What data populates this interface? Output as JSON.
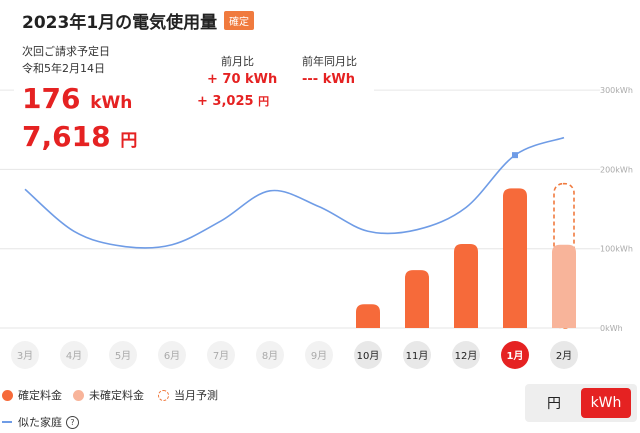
{
  "header": {
    "title": "2023年1月の電気使用量",
    "badge": "確定"
  },
  "summary": {
    "billing_label": "次回ご請求予定日",
    "billing_date": "令和5年2月14日",
    "usage_value": "176",
    "usage_unit": "kWh",
    "cost_value": "7,618",
    "cost_unit": "円",
    "mom_label": "前月比",
    "mom_kwh": "+ 70 kWh",
    "mom_yen_value": "+ 3,025",
    "mom_yen_unit": "円",
    "yoy_label": "前年同月比",
    "yoy_kwh": "--- kWh"
  },
  "chart_data": {
    "type": "bar",
    "categories": [
      "3月",
      "4月",
      "5月",
      "6月",
      "7月",
      "8月",
      "9月",
      "10月",
      "11月",
      "12月",
      "1月",
      "2月"
    ],
    "ylim": [
      0,
      300
    ],
    "y_ticks": [
      "300kWh",
      "200kWh",
      "100kWh",
      "0kWh"
    ],
    "series": [
      {
        "name": "確定料金",
        "values": [
          null,
          null,
          null,
          null,
          null,
          null,
          null,
          30,
          73,
          106,
          176,
          null
        ]
      },
      {
        "name": "未確定料金",
        "values": [
          null,
          null,
          null,
          null,
          null,
          null,
          null,
          null,
          null,
          null,
          null,
          105
        ]
      },
      {
        "name": "当月予測",
        "values": [
          null,
          null,
          null,
          null,
          null,
          null,
          null,
          null,
          null,
          null,
          null,
          182
        ]
      },
      {
        "name": "似た家庭",
        "values": [
          175,
          122,
          103,
          105,
          135,
          173,
          153,
          122,
          124,
          152,
          218,
          240
        ]
      }
    ],
    "active_month": "1月",
    "colors": {
      "confirmed": "#f66a3a",
      "unconfirmed": "#f8b49a",
      "forecast": "#f07a3e",
      "similar": "#6f9ce6",
      "active": "#e52222"
    }
  },
  "legend": {
    "confirmed": "確定料金",
    "unconfirmed": "未確定料金",
    "forecast": "当月予測",
    "similar": "似た家庭"
  },
  "toggle": {
    "yen": "円",
    "kwh": "kWh",
    "selected": "kWh"
  }
}
